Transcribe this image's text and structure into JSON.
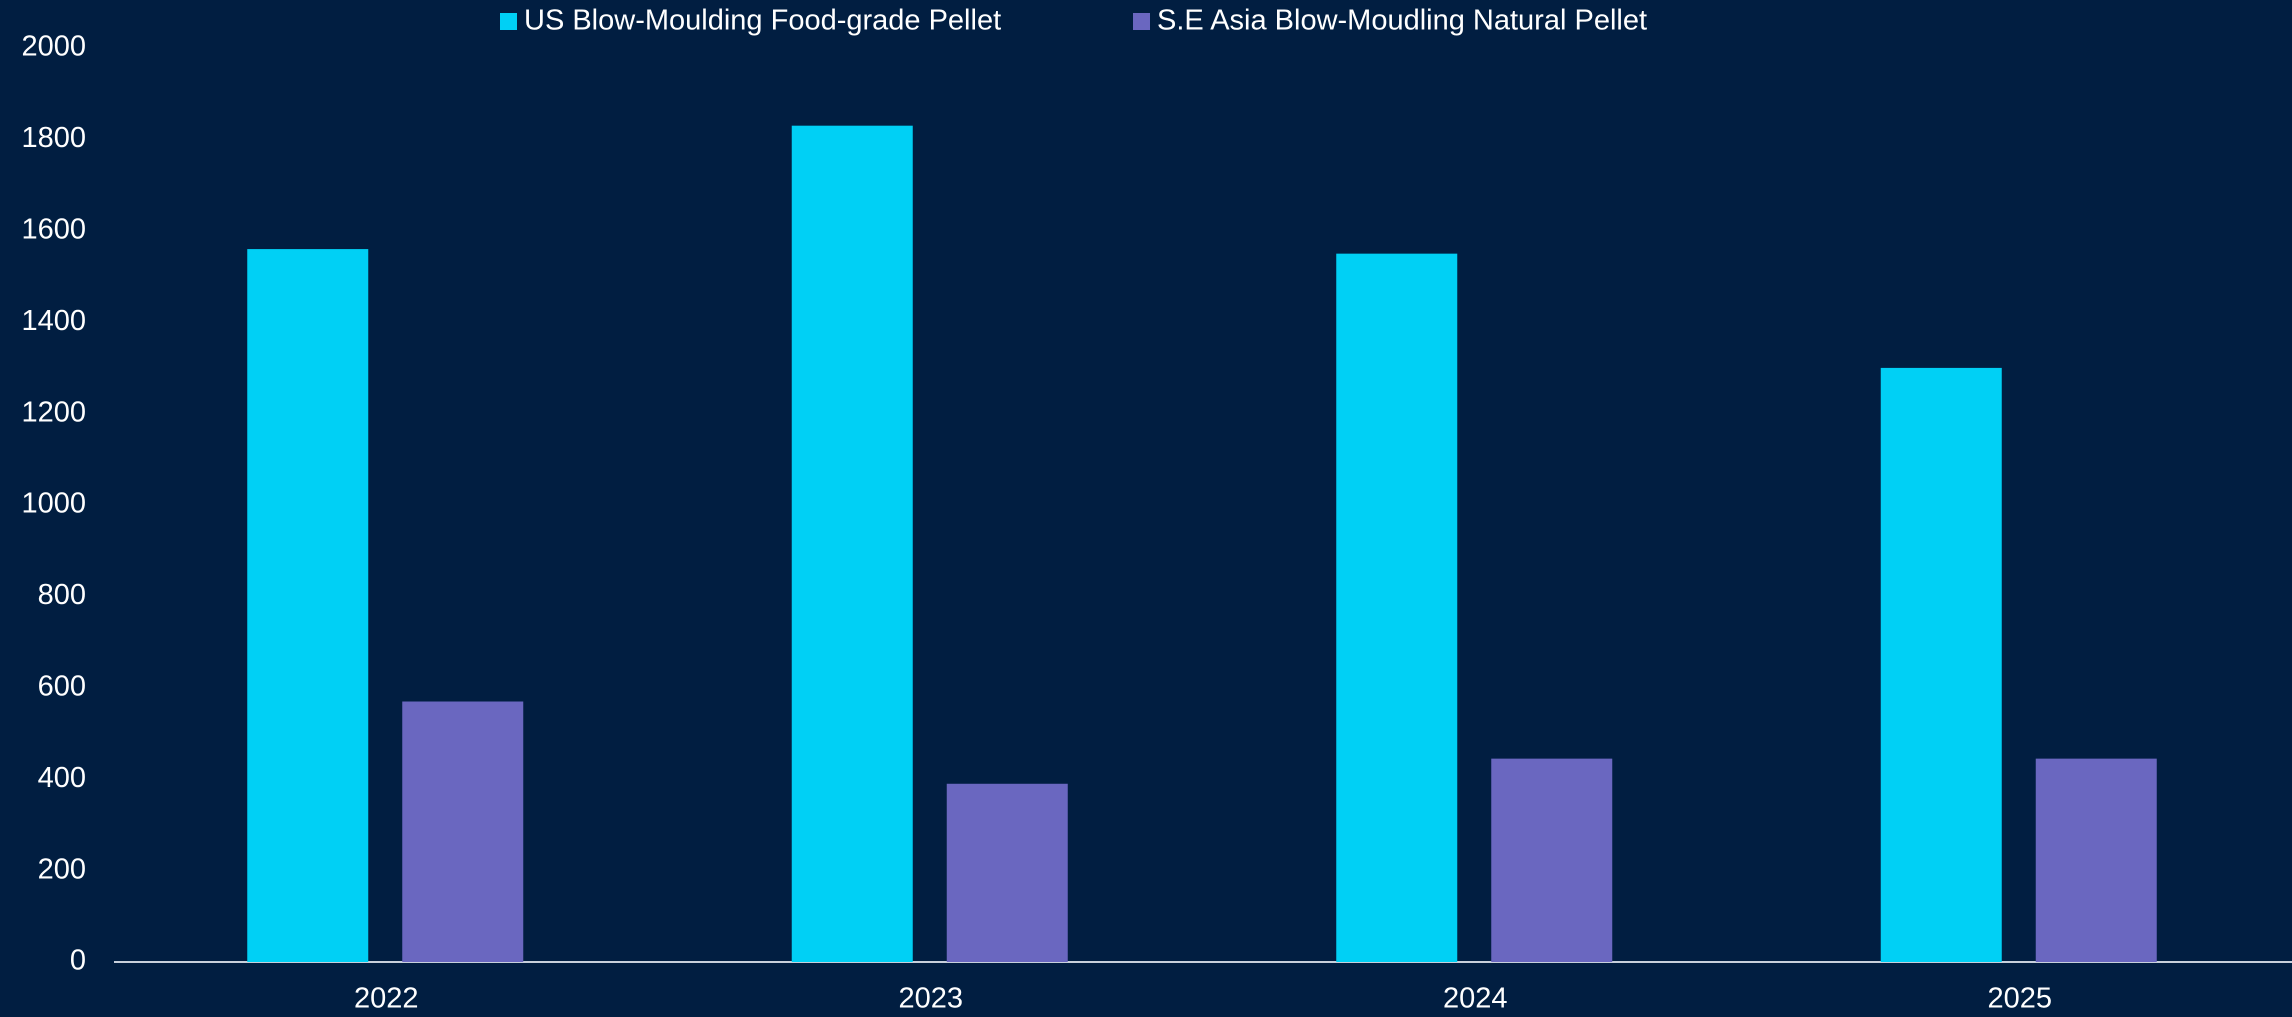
{
  "chart_data": {
    "type": "bar",
    "categories": [
      "2022",
      "2023",
      "2024",
      "2025"
    ],
    "series": [
      {
        "name": "US Blow-Moulding Food-grade Pellet",
        "color": "#00d0f5",
        "values": [
          1560,
          1830,
          1550,
          1300
        ]
      },
      {
        "name": "S.E Asia Blow-Moudling Natural Pellet",
        "color": "#6a67c0",
        "values": [
          570,
          390,
          445,
          445
        ]
      }
    ],
    "ylim": [
      0,
      2000
    ],
    "yticks": [
      0,
      200,
      400,
      600,
      800,
      1000,
      1200,
      1400,
      1600,
      1800,
      2000
    ],
    "grid": false,
    "legend": "top"
  }
}
